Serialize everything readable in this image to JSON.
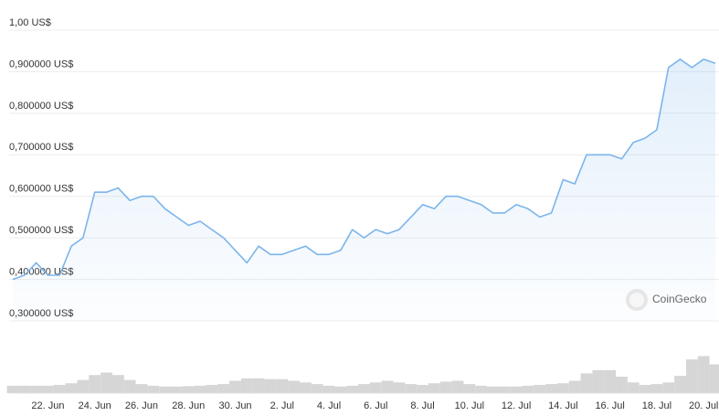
{
  "chart_data": {
    "type": "area",
    "categories": [
      null,
      null,
      null,
      "22. Jun",
      null,
      null,
      null,
      "24. Jun",
      null,
      null,
      null,
      "26. Jun",
      null,
      null,
      null,
      "28. Jun",
      null,
      null,
      null,
      "30. Jun",
      null,
      null,
      null,
      "2. Jul",
      null,
      null,
      null,
      "4. Jul",
      null,
      null,
      null,
      "6. Jul",
      null,
      null,
      null,
      "8. Jul",
      null,
      null,
      null,
      "10. Jul",
      null,
      null,
      null,
      "12. Jul",
      null,
      null,
      null,
      "14. Jul",
      null,
      null,
      null,
      "16. Jul",
      null,
      null,
      null,
      "18. Jul",
      null,
      null,
      null,
      "20. Jul",
      null
    ],
    "series": [
      {
        "color": "#7cb5ec",
        "values": [
          0.4,
          0.41,
          0.44,
          0.41,
          0.41,
          0.48,
          0.5,
          0.61,
          0.61,
          0.62,
          0.59,
          0.6,
          0.6,
          0.57,
          0.55,
          0.53,
          0.54,
          0.52,
          0.5,
          0.47,
          0.44,
          0.48,
          0.46,
          0.46,
          0.47,
          0.48,
          0.46,
          0.46,
          0.47,
          0.52,
          0.5,
          0.52,
          0.51,
          0.52,
          0.55,
          0.58,
          0.57,
          0.6,
          0.6,
          0.59,
          0.58,
          0.56,
          0.56,
          0.58,
          0.57,
          0.55,
          0.56,
          0.64,
          0.63,
          0.7,
          0.7,
          0.7,
          0.69,
          0.73,
          0.74,
          0.76,
          0.91,
          0.93,
          0.91,
          0.93,
          0.92
        ]
      }
    ],
    "volume": {
      "color": "#d6d6d6",
      "ylim": [
        0,
        100
      ],
      "values": [
        18,
        18,
        18,
        18,
        20,
        24,
        32,
        44,
        50,
        44,
        32,
        22,
        18,
        16,
        16,
        17,
        18,
        20,
        22,
        30,
        36,
        36,
        34,
        34,
        30,
        26,
        22,
        18,
        16,
        18,
        22,
        26,
        30,
        26,
        22,
        20,
        24,
        28,
        30,
        22,
        18,
        16,
        16,
        16,
        18,
        20,
        22,
        24,
        30,
        48,
        56,
        56,
        40,
        26,
        20,
        22,
        26,
        42,
        82,
        90,
        70
      ]
    },
    "ylim": [
      0.3,
      1.0
    ],
    "yticks": [
      {
        "value": 1.0,
        "label": "1,00 US$"
      },
      {
        "value": 0.9,
        "label": "0,900000 US$"
      },
      {
        "value": 0.8,
        "label": "0,800000 US$"
      },
      {
        "value": 0.7,
        "label": "0,700000 US$"
      },
      {
        "value": 0.6,
        "label": "0,600000 US$"
      },
      {
        "value": 0.5,
        "label": "0,500000 US$"
      },
      {
        "value": 0.4,
        "label": "0,400000 US$"
      },
      {
        "value": 0.3,
        "label": "0,300000 US$"
      }
    ],
    "grid": true,
    "watermark": "CoinGecko"
  }
}
